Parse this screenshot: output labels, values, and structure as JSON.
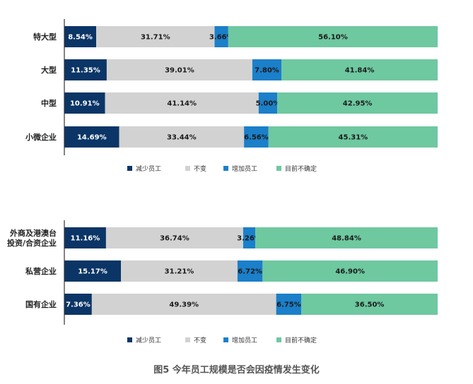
{
  "caption": "图5 今年员工规模是否会因疫情发生变化",
  "chart_data": [
    {
      "type": "bar",
      "stacked": true,
      "orientation": "horizontal",
      "unit": "%",
      "categories": [
        "特大型",
        "大型",
        "中型",
        "小微企业"
      ],
      "series": [
        {
          "name": "减少员工",
          "color": "#0b3566",
          "values": [
            8.54,
            11.35,
            10.91,
            14.69
          ]
        },
        {
          "name": "不变",
          "color": "#d2d2d2",
          "values": [
            31.71,
            39.01,
            41.14,
            33.44
          ]
        },
        {
          "name": "增加员工",
          "color": "#1b7fc9",
          "values": [
            3.66,
            7.8,
            5.0,
            6.56
          ]
        },
        {
          "name": "目前不确定",
          "color": "#6ec8a0",
          "values": [
            56.1,
            41.84,
            42.95,
            45.31
          ]
        }
      ],
      "legend": "bottom"
    },
    {
      "type": "bar",
      "stacked": true,
      "orientation": "horizontal",
      "unit": "%",
      "categories": [
        "外商及港澳台投资/合资企业",
        "私营企业",
        "国有企业"
      ],
      "category_lines": [
        [
          "外商及港澳台",
          "投资/合资企业"
        ],
        [
          "私营企业"
        ],
        [
          "国有企业"
        ]
      ],
      "series": [
        {
          "name": "减少员工",
          "color": "#0b3566",
          "values": [
            11.16,
            15.17,
            7.36
          ]
        },
        {
          "name": "不变",
          "color": "#d2d2d2",
          "values": [
            36.74,
            31.21,
            49.39
          ]
        },
        {
          "name": "增加员工",
          "color": "#1b7fc9",
          "values": [
            3.26,
            6.72,
            6.75
          ]
        },
        {
          "name": "目前不确定",
          "color": "#6ec8a0",
          "values": [
            48.84,
            46.9,
            36.5
          ]
        }
      ],
      "legend": "bottom"
    }
  ]
}
